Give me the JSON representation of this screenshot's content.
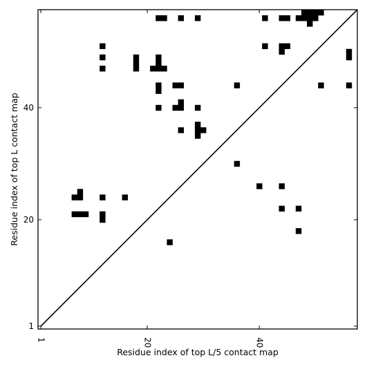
{
  "chart_data": {
    "type": "heatmap",
    "title": "",
    "xlabel": "Residue index of top L/5 contact map",
    "ylabel": "Residue index of top L contact map",
    "xlim": [
      0.5,
      57.5
    ],
    "ylim": [
      0.5,
      57.5
    ],
    "xticks": [
      1,
      20,
      40
    ],
    "yticks": [
      1,
      20,
      40
    ],
    "diagonal_line": true,
    "cell_color": "#000000",
    "contacts": [
      [
        22,
        56
      ],
      [
        23,
        56
      ],
      [
        26,
        56
      ],
      [
        29,
        56
      ],
      [
        41,
        56
      ],
      [
        44,
        56
      ],
      [
        45,
        56
      ],
      [
        47,
        56
      ],
      [
        48,
        56
      ],
      [
        49,
        56
      ],
      [
        50,
        56
      ],
      [
        48,
        57
      ],
      [
        49,
        57
      ],
      [
        50,
        57
      ],
      [
        51,
        57
      ],
      [
        49,
        55
      ],
      [
        12,
        51
      ],
      [
        41,
        51
      ],
      [
        44,
        51
      ],
      [
        45,
        51
      ],
      [
        44,
        50
      ],
      [
        56,
        50
      ],
      [
        56,
        49
      ],
      [
        12,
        49
      ],
      [
        18,
        49
      ],
      [
        22,
        49
      ],
      [
        18,
        48
      ],
      [
        22,
        48
      ],
      [
        12,
        47
      ],
      [
        18,
        47
      ],
      [
        21,
        47
      ],
      [
        22,
        47
      ],
      [
        23,
        47
      ],
      [
        22,
        44
      ],
      [
        25,
        44
      ],
      [
        26,
        44
      ],
      [
        36,
        44
      ],
      [
        51,
        44
      ],
      [
        56,
        44
      ],
      [
        22,
        43
      ],
      [
        26,
        41
      ],
      [
        22,
        40
      ],
      [
        25,
        40
      ],
      [
        26,
        40
      ],
      [
        29,
        40
      ],
      [
        29,
        37
      ],
      [
        29,
        36
      ],
      [
        30,
        36
      ],
      [
        26,
        36
      ],
      [
        29,
        35
      ],
      [
        36,
        30
      ],
      [
        40,
        26
      ],
      [
        44,
        26
      ],
      [
        8,
        25
      ],
      [
        7,
        24
      ],
      [
        8,
        24
      ],
      [
        12,
        24
      ],
      [
        16,
        24
      ],
      [
        7,
        21
      ],
      [
        8,
        21
      ],
      [
        9,
        21
      ],
      [
        12,
        21
      ],
      [
        12,
        20
      ],
      [
        44,
        22
      ],
      [
        47,
        22
      ],
      [
        47,
        18
      ],
      [
        24,
        16
      ]
    ]
  }
}
